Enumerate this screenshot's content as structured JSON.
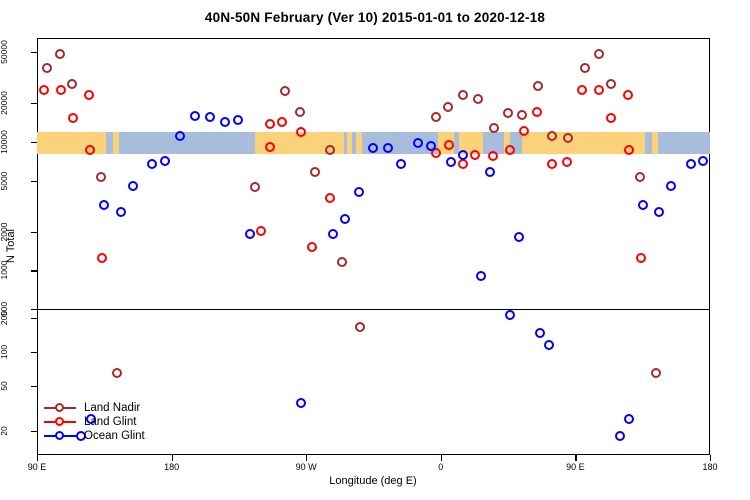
{
  "title": "40N-50N February (Ver 10)   2015-01-01 to 2020-12-18",
  "legend": {
    "items": [
      {
        "label": "Land Nadir",
        "color": "#A52A2A"
      },
      {
        "label": "Land Glint",
        "color": "#FF0000"
      },
      {
        "label": "Ocean Glint",
        "color": "#0000FF"
      }
    ]
  },
  "chart_data": {
    "type": "scatter",
    "title": "40N-50N February (Ver 10)   2015-01-01 to 2020-12-18",
    "xlabel": "Longitude (deg E)",
    "ylabel": "N Total",
    "x_axis": {
      "range": [
        90,
        540
      ],
      "note": "continuous eastward longitude, wraps 90E-180-90W-0-90E-180; points with lon 90-180 are drawn twice",
      "ticks": [
        {
          "lon": 90,
          "label": "90 E"
        },
        {
          "lon": 180,
          "label": "180"
        },
        {
          "lon": 270,
          "label": "90 W"
        },
        {
          "lon": 360,
          "label": "0"
        },
        {
          "lon": 450,
          "label": "90 E"
        },
        {
          "lon": 540,
          "label": "180"
        }
      ]
    },
    "y_axis": {
      "scale": "log10 broken axis (two panels)",
      "upper_ticks": [
        500,
        1000,
        2000,
        5000,
        10000,
        20000,
        50000
      ],
      "lower_ticks": [
        20,
        50,
        100,
        200
      ],
      "upper_panel_bottom_value": 500,
      "lower_panel_top_value": 240,
      "value_cutoff": 400
    },
    "map_band": {
      "description": "40N-50N world-map strip (land=tan, ocean/lakes=light blue)",
      "value_range": [
        8100,
        11900
      ],
      "land_color": "#FBD27A",
      "ocean_color": "#A7BDDB",
      "segments": [
        {
          "from": 90,
          "to": 136,
          "type": "land"
        },
        {
          "from": 136,
          "to": 140.5,
          "type": "ocean"
        },
        {
          "from": 140.5,
          "to": 145,
          "type": "land"
        },
        {
          "from": 145,
          "to": 236,
          "type": "ocean"
        },
        {
          "from": 236,
          "to": 295,
          "type": "land"
        },
        {
          "from": 295,
          "to": 297.5,
          "type": "ocean"
        },
        {
          "from": 297.5,
          "to": 300.5,
          "type": "land"
        },
        {
          "from": 300.5,
          "to": 303,
          "type": "ocean"
        },
        {
          "from": 303,
          "to": 307.5,
          "type": "land"
        },
        {
          "from": 307.5,
          "to": 358,
          "type": "ocean"
        },
        {
          "from": 358,
          "to": 369,
          "type": "land"
        },
        {
          "from": 369,
          "to": 372.5,
          "type": "ocean"
        },
        {
          "from": 372.5,
          "to": 388,
          "type": "land"
        },
        {
          "from": 388,
          "to": 402,
          "type": "ocean"
        },
        {
          "from": 402,
          "to": 406.5,
          "type": "land"
        },
        {
          "from": 406.5,
          "to": 414.5,
          "type": "ocean"
        },
        {
          "from": 414.5,
          "to": 496.5,
          "type": "land"
        },
        {
          "from": 496.5,
          "to": 501,
          "type": "ocean"
        },
        {
          "from": 501,
          "to": 505.5,
          "type": "land"
        },
        {
          "from": 505.5,
          "to": 540,
          "type": "ocean"
        }
      ]
    },
    "series": [
      {
        "name": "Land Nadir",
        "color": "#A52A2A",
        "points": [
          [
            97,
            37000
          ],
          [
            106,
            48000
          ],
          [
            114,
            28000
          ],
          [
            133.5,
            5300
          ],
          [
            144,
            65
          ],
          [
            236,
            4400
          ],
          [
            256,
            24500
          ],
          [
            266,
            17000
          ],
          [
            276,
            5800
          ],
          [
            286,
            8500
          ],
          [
            294.5,
            1150
          ],
          [
            306.5,
            165
          ],
          [
            357.5,
            15400
          ],
          [
            365,
            18300
          ],
          [
            375.5,
            23000
          ],
          [
            385,
            21400
          ],
          [
            396,
            12600
          ],
          [
            405,
            16700
          ],
          [
            415,
            16000
          ],
          [
            425.5,
            27000
          ],
          [
            435,
            11000
          ],
          [
            445.5,
            10600
          ],
          [
            457,
            37000
          ],
          [
            466,
            48000
          ],
          [
            474,
            28000
          ],
          [
            493.5,
            5300
          ],
          [
            504,
            65
          ]
        ]
      },
      {
        "name": "Land Glint",
        "color": "#FF0000",
        "points": [
          [
            95,
            25000
          ],
          [
            106.5,
            25000
          ],
          [
            114.5,
            15100
          ],
          [
            125.5,
            23000
          ],
          [
            126,
            8500
          ],
          [
            134,
            1230
          ],
          [
            240.5,
            2000
          ],
          [
            246,
            13600
          ],
          [
            246,
            9000
          ],
          [
            254.5,
            14000
          ],
          [
            267,
            11700
          ],
          [
            274,
            1500
          ],
          [
            286.5,
            3600
          ],
          [
            357.5,
            8100
          ],
          [
            366,
            9400
          ],
          [
            375.5,
            6700
          ],
          [
            383.5,
            7800
          ],
          [
            395,
            7700
          ],
          [
            406.5,
            8600
          ],
          [
            416,
            12000
          ],
          [
            425,
            17000
          ],
          [
            435,
            6600
          ],
          [
            445,
            6900
          ],
          [
            455,
            25000
          ],
          [
            466.5,
            25000
          ],
          [
            474.5,
            15100
          ],
          [
            485.5,
            23000
          ],
          [
            486,
            8500
          ],
          [
            494,
            1230
          ]
        ]
      },
      {
        "name": "Ocean Glint",
        "color": "#0000FF",
        "points": [
          [
            120,
            18
          ],
          [
            126.5,
            25
          ],
          [
            135.5,
            3200
          ],
          [
            146.5,
            2800
          ],
          [
            154.5,
            4500
          ],
          [
            167.5,
            6600
          ],
          [
            176,
            7000
          ],
          [
            186,
            11000
          ],
          [
            196,
            15600
          ],
          [
            206,
            15300
          ],
          [
            216,
            14000
          ],
          [
            225,
            14500
          ],
          [
            232.5,
            1900
          ],
          [
            267,
            35
          ],
          [
            288,
            1900
          ],
          [
            296.5,
            2500
          ],
          [
            306,
            4000
          ],
          [
            315,
            8800
          ],
          [
            325,
            8900
          ],
          [
            333.5,
            6700
          ],
          [
            345,
            9700
          ],
          [
            354,
            9100
          ],
          [
            367,
            6900
          ],
          [
            375,
            7800
          ],
          [
            387,
            890
          ],
          [
            393,
            5800
          ],
          [
            406.5,
            210
          ],
          [
            413,
            1800
          ],
          [
            427,
            145
          ],
          [
            433,
            115
          ],
          [
            480,
            18
          ],
          [
            486.5,
            25
          ],
          [
            495.5,
            3200
          ],
          [
            506.5,
            2800
          ],
          [
            514.5,
            4500
          ],
          [
            527.5,
            6600
          ],
          [
            536,
            7000
          ]
        ]
      }
    ]
  }
}
